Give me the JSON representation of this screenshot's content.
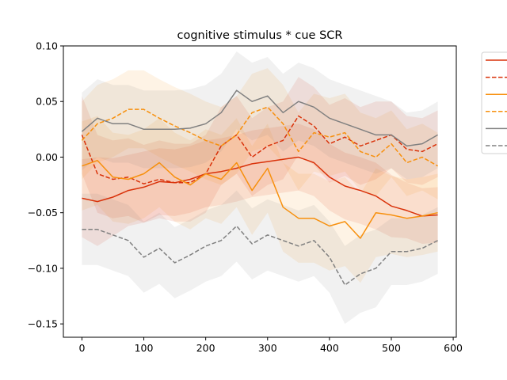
{
  "chart_data": {
    "type": "line",
    "title": "cognitive stimulus * cue SCR",
    "xlabel": "",
    "ylabel": "",
    "xlim": [
      -30,
      605
    ],
    "ylim": [
      -0.162,
      0.1
    ],
    "xticks": [
      0,
      100,
      200,
      300,
      400,
      500,
      600
    ],
    "xtick_labels": [
      "0",
      "100",
      "200",
      "300",
      "400",
      "500",
      "600"
    ],
    "yticks": [
      0.1,
      0.05,
      0.0,
      -0.05,
      -0.1,
      -0.15
    ],
    "ytick_labels": [
      "0.10",
      "0.05",
      "0.00",
      "−0.05",
      "−0.10",
      "−0.15"
    ],
    "grid": false,
    "legend": {
      "placement": "right-outside",
      "labels_visible": false
    },
    "x": [
      0,
      25,
      50,
      75,
      100,
      125,
      150,
      175,
      200,
      225,
      250,
      275,
      300,
      325,
      350,
      375,
      400,
      425,
      450,
      475,
      500,
      525,
      550,
      575
    ],
    "series": [
      {
        "color": "#d9320a",
        "dash": "solid",
        "values": [
          -0.037,
          -0.04,
          -0.036,
          -0.03,
          -0.027,
          -0.022,
          -0.023,
          -0.02,
          -0.015,
          -0.013,
          -0.01,
          -0.006,
          -0.004,
          -0.002,
          0.0,
          -0.005,
          -0.018,
          -0.026,
          -0.03,
          -0.035,
          -0.044,
          -0.048,
          -0.053,
          -0.052
        ],
        "band": [
          0.035,
          0.04,
          0.035,
          0.032,
          0.032,
          0.03,
          0.03,
          0.03,
          0.03,
          0.03,
          0.03,
          0.03,
          0.03,
          0.03,
          0.03,
          0.03,
          0.03,
          0.03,
          0.03,
          0.03,
          0.028,
          0.025,
          0.025,
          0.025
        ]
      },
      {
        "color": "#d9320a",
        "dash": "dashed",
        "values": [
          0.02,
          -0.015,
          -0.02,
          -0.018,
          -0.024,
          -0.02,
          -0.023,
          -0.023,
          -0.015,
          0.01,
          0.02,
          0.0,
          0.01,
          0.015,
          0.037,
          0.028,
          0.012,
          0.018,
          0.01,
          0.015,
          0.02,
          0.007,
          0.005,
          0.012
        ],
        "band": [
          0.035,
          0.035,
          0.035,
          0.035,
          0.035,
          0.035,
          0.035,
          0.035,
          0.035,
          0.035,
          0.035,
          0.035,
          0.035,
          0.035,
          0.035,
          0.035,
          0.035,
          0.035,
          0.035,
          0.035,
          0.03,
          0.03,
          0.03,
          0.03
        ]
      },
      {
        "color": "#f7900e",
        "dash": "solid",
        "values": [
          -0.008,
          -0.003,
          -0.018,
          -0.02,
          -0.015,
          -0.005,
          -0.018,
          -0.025,
          -0.015,
          -0.02,
          -0.005,
          -0.03,
          -0.01,
          -0.045,
          -0.055,
          -0.055,
          -0.062,
          -0.058,
          -0.073,
          -0.05,
          -0.052,
          -0.055,
          -0.053,
          -0.05
        ],
        "band": [
          0.04,
          0.04,
          0.04,
          0.04,
          0.04,
          0.04,
          0.04,
          0.04,
          0.04,
          0.04,
          0.04,
          0.04,
          0.04,
          0.04,
          0.04,
          0.04,
          0.04,
          0.04,
          0.04,
          0.04,
          0.035,
          0.035,
          0.035,
          0.035
        ]
      },
      {
        "color": "#f7900e",
        "dash": "dashed",
        "values": [
          0.015,
          0.03,
          0.035,
          0.043,
          0.043,
          0.035,
          0.028,
          0.022,
          0.015,
          0.01,
          0.02,
          0.04,
          0.045,
          0.03,
          0.005,
          0.022,
          0.018,
          0.022,
          0.005,
          0.0,
          0.012,
          -0.005,
          0.0,
          -0.008
        ],
        "band": [
          0.035,
          0.035,
          0.035,
          0.035,
          0.035,
          0.035,
          0.035,
          0.035,
          0.035,
          0.035,
          0.035,
          0.035,
          0.035,
          0.035,
          0.035,
          0.035,
          0.035,
          0.035,
          0.035,
          0.035,
          0.03,
          0.03,
          0.03,
          0.03
        ]
      },
      {
        "color": "#808080",
        "dash": "solid",
        "values": [
          0.023,
          0.035,
          0.03,
          0.03,
          0.025,
          0.025,
          0.025,
          0.026,
          0.03,
          0.04,
          0.06,
          0.05,
          0.055,
          0.04,
          0.05,
          0.045,
          0.035,
          0.03,
          0.025,
          0.02,
          0.02,
          0.01,
          0.012,
          0.02
        ],
        "band": [
          0.035,
          0.035,
          0.035,
          0.035,
          0.035,
          0.035,
          0.035,
          0.035,
          0.035,
          0.035,
          0.035,
          0.035,
          0.035,
          0.035,
          0.035,
          0.035,
          0.035,
          0.035,
          0.035,
          0.035,
          0.03,
          0.03,
          0.03,
          0.03
        ]
      },
      {
        "color": "#808080",
        "dash": "dashed",
        "values": [
          -0.065,
          -0.065,
          -0.07,
          -0.075,
          -0.09,
          -0.082,
          -0.095,
          -0.088,
          -0.08,
          -0.075,
          -0.062,
          -0.078,
          -0.07,
          -0.075,
          -0.08,
          -0.075,
          -0.09,
          -0.115,
          -0.105,
          -0.1,
          -0.085,
          -0.085,
          -0.082,
          -0.075
        ],
        "band": [
          0.032,
          0.032,
          0.032,
          0.032,
          0.032,
          0.032,
          0.032,
          0.032,
          0.032,
          0.032,
          0.032,
          0.032,
          0.032,
          0.032,
          0.032,
          0.032,
          0.032,
          0.035,
          0.035,
          0.035,
          0.03,
          0.03,
          0.03,
          0.03
        ]
      }
    ]
  }
}
